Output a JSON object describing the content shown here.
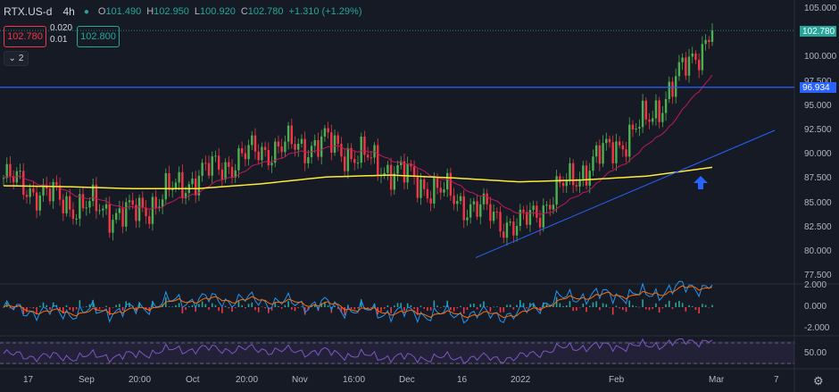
{
  "legend": {
    "symbol": "RTX.US-d",
    "timeframe": "4h",
    "o_key": "O",
    "o_val": "101.490",
    "h_key": "H",
    "h_val": "102.950",
    "l_key": "L",
    "l_val": "100.920",
    "c_key": "C",
    "c_val": "102.780",
    "change": "+1.310 (+1.29%)"
  },
  "trade": {
    "bid": "102.780",
    "spread_top": "0.020",
    "spread_bottom": "0.01",
    "ask": "102.800"
  },
  "indicators_toggle": {
    "count": "2"
  },
  "price_axis": [
    "105.000",
    "102.500",
    "100.000",
    "97.500",
    "95.000",
    "92.500",
    "90.000",
    "87.500",
    "85.000",
    "82.500",
    "80.000",
    "77.500"
  ],
  "macd_axis": [
    "2.000",
    "0.000",
    "-2.000"
  ],
  "rsi_axis": [
    "50.00"
  ],
  "last_price_label": "102.780",
  "horizontal_line_label": "96.934",
  "time_axis": [
    "17",
    "Sep",
    "20:00",
    "Oct",
    "20:00",
    "Nov",
    "16:00",
    "Dec",
    "16",
    "2022",
    "Feb",
    "Mar",
    "7"
  ],
  "colors": {
    "background": "#161a25",
    "up": "#26a69a",
    "up_candle": "#4caf50",
    "down": "#f23645",
    "ma_slow": "#ffeb3b",
    "ma_fast": "#c2185b",
    "hline": "#2962ff",
    "rsi": "#7e57c2",
    "trendline": "#2962ff"
  },
  "chart_data": {
    "type": "line",
    "x": [
      "17",
      "Sep",
      "20:00",
      "Oct",
      "20:00",
      "Nov",
      "16:00",
      "Dec",
      "16",
      "2022",
      "Feb",
      "Mar"
    ],
    "series": [
      {
        "values": [
          87.6,
          85.0,
          83.8,
          87.8,
          90.5,
          91.2,
          88.5,
          85.5,
          82.5,
          88.5,
          93.5,
          102.8
        ]
      },
      {
        "values": [
          86.8,
          86.7,
          86.5,
          86.5,
          87.0,
          87.7,
          87.9,
          87.6,
          87.2,
          87.4,
          87.8,
          88.7
        ]
      }
    ],
    "ylim": [
      77.5,
      105.0
    ],
    "markers": {
      "last_price": 102.78,
      "horizontal_level": 96.934
    }
  }
}
